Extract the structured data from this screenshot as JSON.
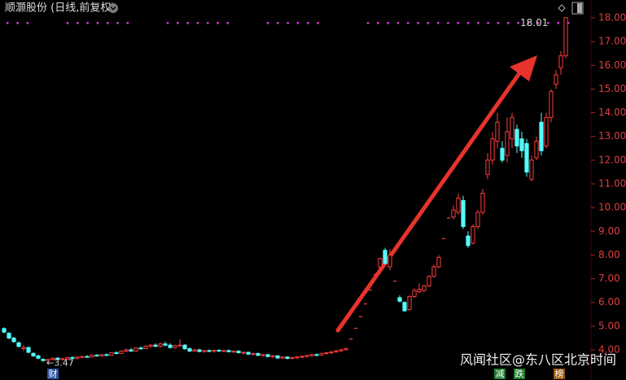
{
  "chart_data": {
    "type": "candlestick",
    "title": "顺灏股份 (日线,前复权)",
    "up_color": "#ff3b3b",
    "down_color": "#54fcfc",
    "ylim": [
      3.3,
      18.3
    ],
    "yticks": [
      {
        "value": 4,
        "label": "4.00"
      },
      {
        "value": 5,
        "label": "5.00"
      },
      {
        "value": 6,
        "label": "6.00"
      },
      {
        "value": 7,
        "label": "7.00"
      },
      {
        "value": 8,
        "label": "8.00"
      },
      {
        "value": 9,
        "label": "9.00"
      },
      {
        "value": 10,
        "label": "10.00"
      },
      {
        "value": 11,
        "label": "11.00"
      },
      {
        "value": 12,
        "label": "12.00"
      },
      {
        "value": 13,
        "label": "13.00"
      },
      {
        "value": 14,
        "label": "14.00"
      },
      {
        "value": 15,
        "label": "15.00"
      },
      {
        "value": 16,
        "label": "16.00"
      },
      {
        "value": 17,
        "label": "17.00"
      },
      {
        "value": 18,
        "label": "18.00"
      }
    ],
    "ohlc": [
      [
        4.9,
        4.95,
        4.7,
        4.75
      ],
      [
        4.7,
        4.75,
        4.45,
        4.5
      ],
      [
        4.5,
        4.55,
        4.3,
        4.35
      ],
      [
        4.3,
        4.35,
        4.1,
        4.15
      ],
      [
        4.05,
        4.2,
        3.95,
        4.1
      ],
      [
        4.1,
        4.15,
        3.85,
        3.9
      ],
      [
        3.85,
        3.9,
        3.7,
        3.75
      ],
      [
        3.75,
        3.8,
        3.6,
        3.65
      ],
      [
        3.6,
        3.65,
        3.5,
        3.55
      ],
      [
        3.55,
        3.62,
        3.47,
        3.6
      ],
      [
        3.6,
        3.68,
        3.55,
        3.65
      ],
      [
        3.65,
        3.7,
        3.58,
        3.6
      ],
      [
        3.6,
        3.66,
        3.55,
        3.63
      ],
      [
        3.62,
        3.7,
        3.6,
        3.68
      ],
      [
        3.68,
        3.72,
        3.62,
        3.65
      ],
      [
        3.65,
        3.72,
        3.6,
        3.7
      ],
      [
        3.7,
        3.75,
        3.65,
        3.72
      ],
      [
        3.72,
        3.78,
        3.68,
        3.7
      ],
      [
        3.7,
        3.8,
        3.68,
        3.78
      ],
      [
        3.78,
        3.82,
        3.72,
        3.75
      ],
      [
        3.75,
        3.82,
        3.7,
        3.8
      ],
      [
        3.8,
        3.85,
        3.74,
        3.77
      ],
      [
        3.77,
        3.9,
        3.75,
        3.88
      ],
      [
        3.88,
        3.95,
        3.82,
        3.85
      ],
      [
        3.85,
        3.98,
        3.83,
        3.95
      ],
      [
        3.95,
        4.05,
        3.9,
        4.0
      ],
      [
        4.0,
        4.08,
        3.92,
        3.95
      ],
      [
        3.95,
        4.1,
        3.93,
        4.08
      ],
      [
        4.08,
        4.15,
        4.0,
        4.05
      ],
      [
        4.05,
        4.2,
        4.02,
        4.15
      ],
      [
        4.15,
        4.25,
        4.1,
        4.2
      ],
      [
        4.2,
        4.28,
        4.12,
        4.15
      ],
      [
        4.15,
        4.3,
        4.1,
        4.25
      ],
      [
        4.25,
        4.35,
        4.15,
        4.2
      ],
      [
        4.2,
        4.28,
        4.05,
        4.1
      ],
      [
        4.1,
        4.22,
        4.05,
        4.18
      ],
      [
        4.18,
        4.45,
        4.15,
        4.2
      ],
      [
        4.2,
        4.25,
        4.0,
        4.05
      ],
      [
        4.05,
        4.1,
        3.9,
        3.95
      ],
      [
        3.95,
        4.05,
        3.92,
        4.0
      ],
      [
        4.0,
        4.05,
        3.9,
        3.93
      ],
      [
        3.93,
        4.0,
        3.88,
        3.97
      ],
      [
        3.97,
        4.02,
        3.9,
        3.95
      ],
      [
        3.95,
        4.0,
        3.88,
        3.98
      ],
      [
        3.98,
        4.03,
        3.92,
        3.95
      ],
      [
        3.95,
        4.0,
        3.9,
        3.97
      ],
      [
        3.97,
        4.02,
        3.9,
        3.92
      ],
      [
        3.92,
        3.98,
        3.86,
        3.95
      ],
      [
        3.95,
        3.98,
        3.85,
        3.88
      ],
      [
        3.88,
        3.93,
        3.8,
        3.9
      ],
      [
        3.9,
        3.92,
        3.78,
        3.82
      ],
      [
        3.82,
        3.88,
        3.76,
        3.85
      ],
      [
        3.85,
        3.88,
        3.74,
        3.77
      ],
      [
        3.77,
        3.82,
        3.7,
        3.8
      ],
      [
        3.8,
        3.83,
        3.68,
        3.72
      ],
      [
        3.72,
        3.78,
        3.65,
        3.75
      ],
      [
        3.75,
        3.78,
        3.62,
        3.66
      ],
      [
        3.66,
        3.72,
        3.6,
        3.7
      ],
      [
        3.7,
        3.74,
        3.6,
        3.64
      ],
      [
        3.64,
        3.7,
        3.6,
        3.68
      ],
      [
        3.68,
        3.74,
        3.63,
        3.7
      ],
      [
        3.7,
        3.76,
        3.65,
        3.73
      ],
      [
        3.73,
        3.78,
        3.68,
        3.76
      ],
      [
        3.76,
        3.82,
        3.7,
        3.8
      ],
      [
        3.8,
        3.86,
        3.74,
        3.78
      ],
      [
        3.78,
        3.88,
        3.76,
        3.85
      ],
      [
        3.85,
        3.9,
        3.8,
        3.88
      ],
      [
        3.88,
        3.95,
        3.82,
        3.92
      ],
      [
        3.92,
        4.0,
        3.88,
        3.96
      ],
      [
        3.96,
        4.05,
        3.92,
        4.0
      ],
      [
        4.0,
        4.1,
        3.98,
        4.05
      ],
      [
        4.46,
        4.46,
        4.46,
        4.46
      ],
      [
        4.91,
        4.91,
        4.91,
        4.91
      ],
      [
        5.4,
        5.4,
        5.4,
        5.4
      ],
      [
        5.94,
        5.94,
        5.94,
        5.94
      ],
      [
        6.53,
        6.53,
        6.53,
        6.53
      ],
      [
        7.18,
        7.18,
        7.18,
        7.18
      ],
      [
        7.5,
        7.9,
        7.4,
        7.85
      ],
      [
        8.2,
        8.3,
        7.6,
        7.65
      ],
      [
        7.5,
        8.25,
        7.35,
        8.0
      ],
      [
        6.9,
        6.9,
        6.9,
        6.9
      ],
      [
        6.2,
        6.3,
        6.0,
        6.05
      ],
      [
        6.0,
        6.05,
        5.6,
        5.65
      ],
      [
        5.7,
        6.3,
        5.65,
        6.25
      ],
      [
        6.25,
        6.6,
        6.2,
        6.5
      ],
      [
        6.45,
        6.8,
        6.4,
        6.55
      ],
      [
        6.5,
        6.75,
        6.45,
        6.7
      ],
      [
        6.7,
        7.15,
        6.65,
        7.1
      ],
      [
        7.1,
        7.6,
        7.05,
        7.5
      ],
      [
        7.5,
        8.0,
        7.45,
        7.9
      ],
      [
        8.69,
        8.69,
        8.69,
        8.69
      ],
      [
        9.56,
        9.56,
        9.56,
        9.56
      ],
      [
        9.6,
        10.1,
        9.5,
        9.9
      ],
      [
        9.8,
        10.6,
        9.7,
        10.4
      ],
      [
        10.3,
        10.5,
        9.1,
        9.2
      ],
      [
        8.8,
        9.0,
        8.3,
        8.4
      ],
      [
        8.5,
        9.3,
        8.45,
        9.2
      ],
      [
        9.2,
        9.9,
        9.1,
        9.8
      ],
      [
        9.8,
        10.8,
        9.7,
        10.6
      ],
      [
        11.4,
        12.3,
        11.2,
        12.0
      ],
      [
        12.0,
        13.2,
        11.8,
        12.9
      ],
      [
        12.8,
        14.0,
        12.5,
        13.6
      ],
      [
        12.5,
        12.8,
        11.9,
        12.0
      ],
      [
        12.2,
        13.8,
        11.9,
        13.2
      ],
      [
        12.9,
        14.0,
        12.5,
        13.8
      ],
      [
        13.3,
        13.5,
        12.3,
        12.6
      ],
      [
        12.9,
        13.2,
        12.1,
        12.4
      ],
      [
        12.7,
        12.9,
        11.3,
        11.5
      ],
      [
        11.2,
        12.2,
        11.1,
        12.0
      ],
      [
        12.1,
        13.0,
        12.0,
        12.8
      ],
      [
        13.6,
        14.0,
        12.2,
        12.4
      ],
      [
        12.6,
        14.0,
        12.5,
        13.8
      ],
      [
        13.8,
        15.0,
        13.6,
        14.9
      ],
      [
        15.2,
        15.8,
        15.0,
        15.6
      ],
      [
        15.9,
        16.6,
        15.6,
        16.4
      ],
      [
        16.4,
        18.01,
        16.3,
        18.01
      ]
    ],
    "high_label": "18.01",
    "low_label": "←3.47",
    "badges": [
      "财",
      "减",
      "跌",
      "榜"
    ],
    "watermark": "风闻社区@东八区北京时间"
  }
}
